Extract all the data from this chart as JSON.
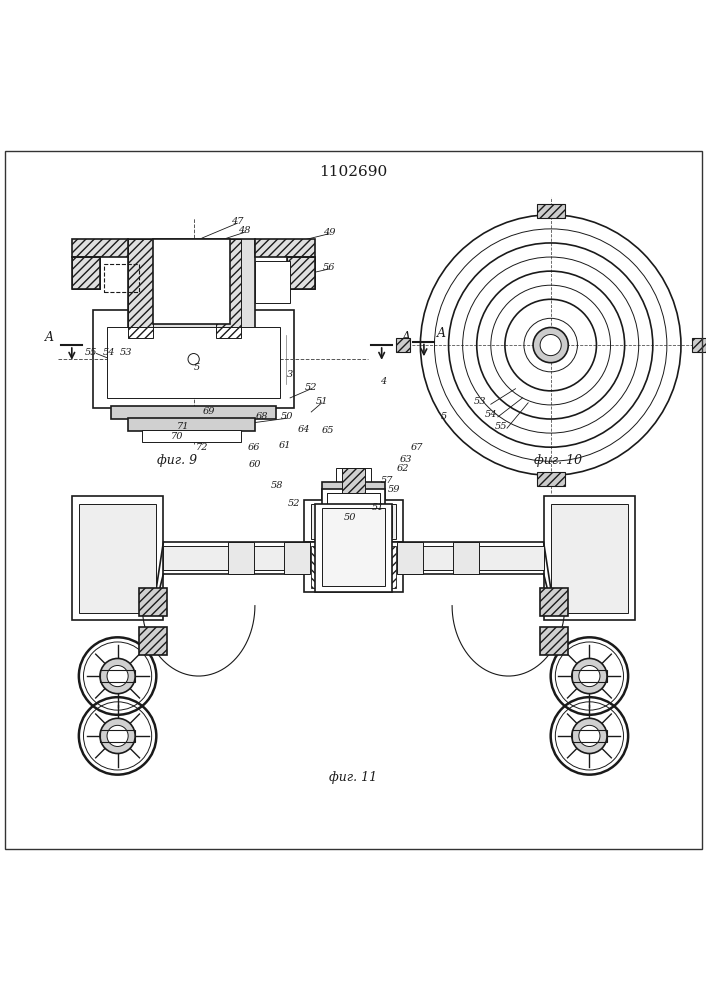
{
  "title": "1102690",
  "background_color": "#ffffff",
  "line_color": "#1a1a1a",
  "fig9_caption": "фиг. 9",
  "fig10_caption": "фиг. 10",
  "fig11_caption": "фиг. 11"
}
